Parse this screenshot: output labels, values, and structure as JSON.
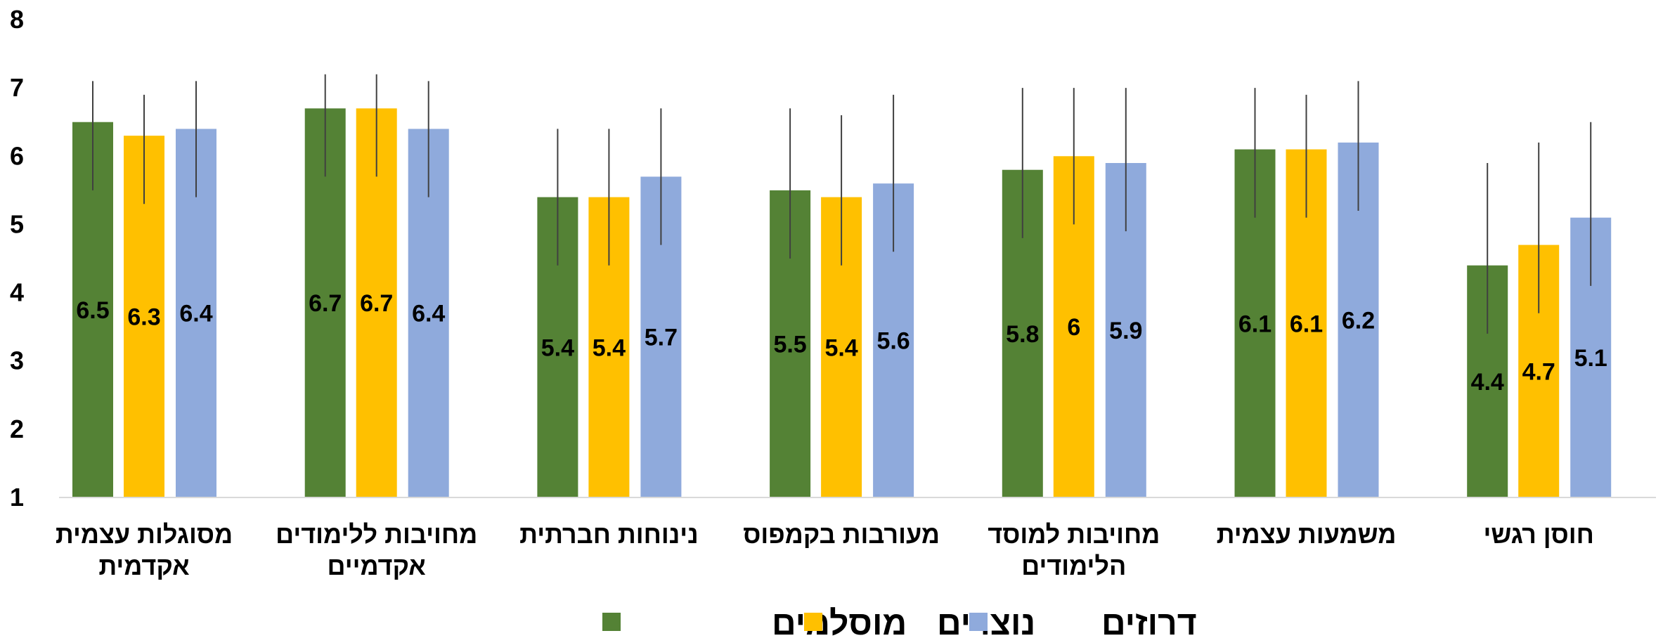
{
  "chart_data": {
    "type": "bar",
    "title": "",
    "xlabel": "",
    "ylabel": "",
    "ylim": [
      1,
      8
    ],
    "yticks": [
      "1",
      "2",
      "3",
      "4",
      "5",
      "6",
      "7",
      "8"
    ],
    "grid": false,
    "legend_position": "bottom",
    "error_bars": true,
    "categories": [
      [
        "מסוגלות עצמית",
        "אקדמית"
      ],
      [
        "מחויבות ללימודים",
        "אקדמיים"
      ],
      [
        "נינוחות חברתית"
      ],
      [
        "מעורבות בקמפוס"
      ],
      [
        "מחויבות למוסד",
        "הלימודים"
      ],
      [
        "משמעות עצמית"
      ],
      [
        "חוסן רגשי"
      ]
    ],
    "series": [
      {
        "name": "מוסלמים",
        "color": "#548235",
        "values": [
          6.5,
          6.7,
          5.4,
          5.5,
          5.8,
          6.1,
          4.4
        ],
        "labels": [
          "6.5",
          "6.7",
          "5.4",
          "5.5",
          "5.8",
          "6.1",
          "4.4"
        ],
        "error_low": [
          5.5,
          5.7,
          4.4,
          4.5,
          4.8,
          5.1,
          3.4
        ],
        "error_high": [
          7.1,
          7.2,
          6.4,
          6.7,
          7.0,
          7.0,
          5.9
        ]
      },
      {
        "name": "נוצרים",
        "color": "#FFC000",
        "values": [
          6.3,
          6.7,
          5.4,
          5.4,
          6.0,
          6.1,
          4.7
        ],
        "labels": [
          "6.3",
          "6.7",
          "5.4",
          "5.4",
          "6",
          "6.1",
          "4.7"
        ],
        "error_low": [
          5.3,
          5.7,
          4.4,
          4.4,
          5.0,
          5.1,
          3.7
        ],
        "error_high": [
          6.9,
          7.2,
          6.4,
          6.6,
          7.0,
          6.9,
          6.2
        ]
      },
      {
        "name": "דרוזים",
        "color": "#8FAADC",
        "values": [
          6.4,
          6.4,
          5.7,
          5.6,
          5.9,
          6.2,
          5.1
        ],
        "labels": [
          "6.4",
          "6.4",
          "5.7",
          "5.6",
          "5.9",
          "6.2",
          "5.1"
        ],
        "error_low": [
          5.4,
          5.4,
          4.7,
          4.6,
          4.9,
          5.2,
          4.1
        ],
        "error_high": [
          7.1,
          7.1,
          6.7,
          6.9,
          7.0,
          7.1,
          6.5
        ]
      }
    ]
  }
}
